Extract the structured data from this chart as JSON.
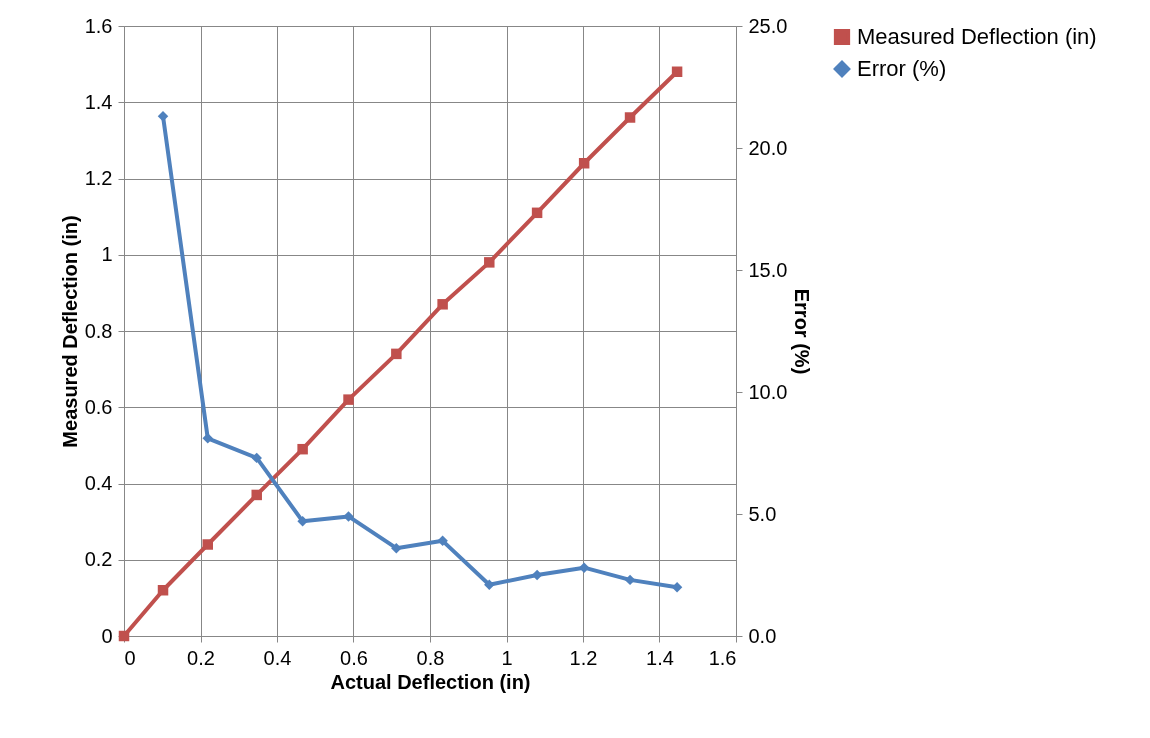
{
  "chart_data": {
    "type": "line",
    "xlabel": "Actual Deflection (in)",
    "ylabel": "Measured Deflection (in)",
    "y2label": "Error (%)",
    "x": [
      0,
      0.102,
      0.219,
      0.347,
      0.467,
      0.587,
      0.712,
      0.833,
      0.955,
      1.08,
      1.203,
      1.323,
      1.446
    ],
    "series": [
      {
        "name": "Measured Deflection (in)",
        "color": "#c0504d",
        "marker": "square",
        "values": [
          0,
          0.12,
          0.24,
          0.37,
          0.49,
          0.62,
          0.74,
          0.87,
          0.98,
          1.11,
          1.24,
          1.36,
          1.48
        ]
      },
      {
        "name": "Error (%)",
        "color": "#4f81bd",
        "marker": "diamond",
        "axis": "y2",
        "values": [
          null,
          21.3,
          8.1,
          7.3,
          4.7,
          4.9,
          3.6,
          3.9,
          2.1,
          2.5,
          2.8,
          2.3,
          2.0
        ]
      }
    ],
    "xlim": [
      0,
      1.6
    ],
    "xticks": [
      0,
      0.2,
      0.4,
      0.6,
      0.8,
      1,
      1.2,
      1.4,
      1.6
    ],
    "ylim": [
      0,
      1.6
    ],
    "yticks": [
      0,
      0.2,
      0.4,
      0.6,
      0.8,
      1,
      1.2,
      1.4,
      1.6
    ],
    "y2lim": [
      0,
      25
    ],
    "y2ticks": [
      {
        "value": 0,
        "label": "0.0"
      },
      {
        "value": 5,
        "label": "5.0"
      },
      {
        "value": 10,
        "label": "10.0"
      },
      {
        "value": 15,
        "label": "15.0"
      },
      {
        "value": 20,
        "label": "20.0"
      },
      {
        "value": 25,
        "label": "25.0"
      }
    ],
    "grid": true,
    "legend": "right",
    "line_style": "solid"
  }
}
